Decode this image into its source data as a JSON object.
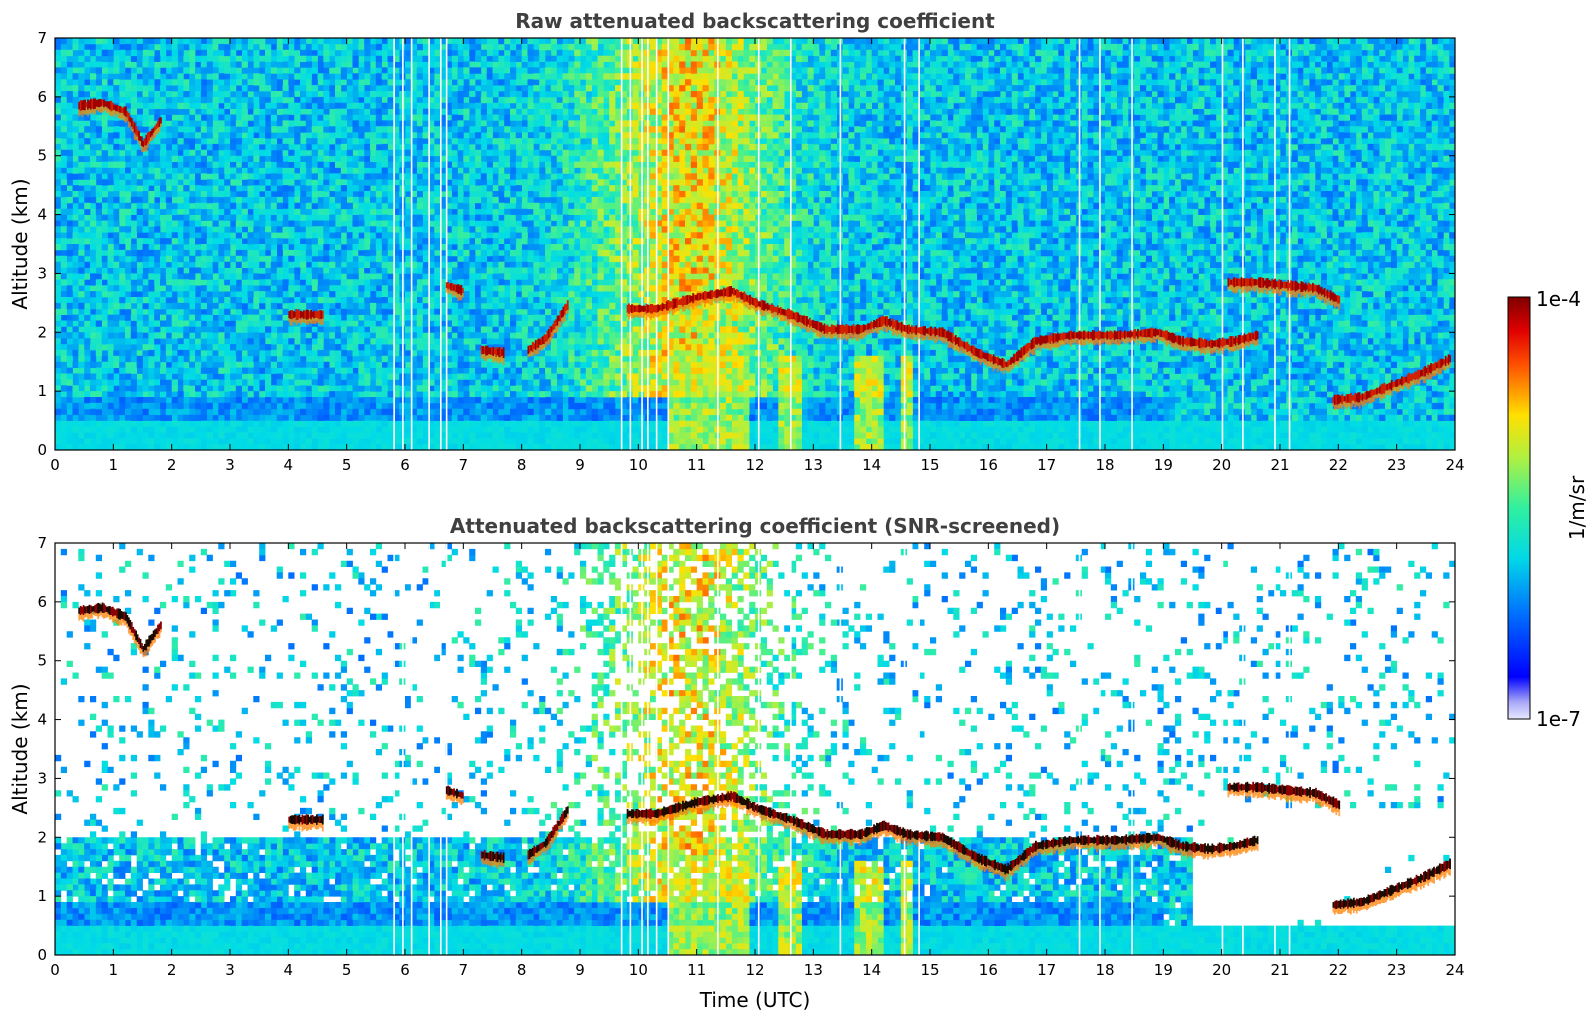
{
  "chart_data": [
    {
      "type": "heatmap",
      "title": "Raw attenuated backscattering coefficient",
      "xlabel": "",
      "ylabel": "Altitude (km)",
      "xlim": [
        0,
        24
      ],
      "ylim": [
        0,
        7
      ],
      "xticks": [
        "0",
        "1",
        "2",
        "3",
        "4",
        "5",
        "6",
        "7",
        "8",
        "9",
        "10",
        "11",
        "12",
        "13",
        "14",
        "15",
        "16",
        "17",
        "18",
        "19",
        "20",
        "21",
        "22",
        "23",
        "24"
      ],
      "yticks": [
        "0",
        "1",
        "2",
        "3",
        "4",
        "5",
        "6",
        "7"
      ],
      "layers": [
        {
          "feature": "cloud",
          "points": [
            [
              0.4,
              5.85
            ],
            [
              0.8,
              5.9
            ],
            [
              1.2,
              5.75
            ],
            [
              1.5,
              5.2
            ],
            [
              1.8,
              5.6
            ]
          ]
        },
        {
          "feature": "cloud",
          "points": [
            [
              4.0,
              2.3
            ],
            [
              4.6,
              2.3
            ]
          ]
        },
        {
          "feature": "cloud",
          "points": [
            [
              6.7,
              2.8
            ],
            [
              7.0,
              2.7
            ]
          ]
        },
        {
          "feature": "cloud",
          "points": [
            [
              7.3,
              1.7
            ],
            [
              7.7,
              1.65
            ]
          ]
        },
        {
          "feature": "cloud",
          "points": [
            [
              8.1,
              1.7
            ],
            [
              8.4,
              1.9
            ],
            [
              8.8,
              2.5
            ]
          ]
        },
        {
          "feature": "cloud",
          "points": [
            [
              9.8,
              2.4
            ],
            [
              10.3,
              2.4
            ],
            [
              11.0,
              2.6
            ],
            [
              11.6,
              2.7
            ],
            [
              12.0,
              2.5
            ],
            [
              12.6,
              2.3
            ],
            [
              13.2,
              2.05
            ],
            [
              13.8,
              2.05
            ],
            [
              14.2,
              2.2
            ],
            [
              14.6,
              2.05
            ],
            [
              15.2,
              2.0
            ],
            [
              15.8,
              1.65
            ],
            [
              16.3,
              1.45
            ],
            [
              16.8,
              1.85
            ],
            [
              17.4,
              1.95
            ],
            [
              18.2,
              1.95
            ],
            [
              18.9,
              2.0
            ],
            [
              19.3,
              1.85
            ],
            [
              19.8,
              1.8
            ],
            [
              20.2,
              1.85
            ],
            [
              20.6,
              1.95
            ]
          ]
        },
        {
          "feature": "cloud",
          "points": [
            [
              20.1,
              2.85
            ],
            [
              20.6,
              2.85
            ],
            [
              21.1,
              2.8
            ],
            [
              21.6,
              2.75
            ],
            [
              22.0,
              2.55
            ]
          ]
        },
        {
          "feature": "cloud",
          "points": [
            [
              21.9,
              0.85
            ],
            [
              22.4,
              0.9
            ],
            [
              22.9,
              1.1
            ],
            [
              23.4,
              1.3
            ],
            [
              23.9,
              1.55
            ]
          ]
        }
      ],
      "colorbar": {
        "max_label": "1e-4",
        "min_label": "1e-7",
        "label": "1/m/sr",
        "scale": "log",
        "range": [
          1e-07,
          0.0001
        ]
      }
    },
    {
      "type": "heatmap",
      "title": "Attenuated backscattering coefficient (SNR-screened)",
      "xlabel": "Time (UTC)",
      "ylabel": "Altitude (km)",
      "xlim": [
        0,
        24
      ],
      "ylim": [
        0,
        7
      ],
      "xticks": [
        "0",
        "1",
        "2",
        "3",
        "4",
        "5",
        "6",
        "7",
        "8",
        "9",
        "10",
        "11",
        "12",
        "13",
        "14",
        "15",
        "16",
        "17",
        "18",
        "19",
        "20",
        "21",
        "22",
        "23",
        "24"
      ],
      "yticks": [
        "0",
        "1",
        "2",
        "3",
        "4",
        "5",
        "6",
        "7"
      ]
    }
  ],
  "colors": {
    "low": "#0000ff",
    "mid": "#00e0e0",
    "high": "#ffd000",
    "peak": "#8b0000",
    "title_gray": "#404040"
  }
}
